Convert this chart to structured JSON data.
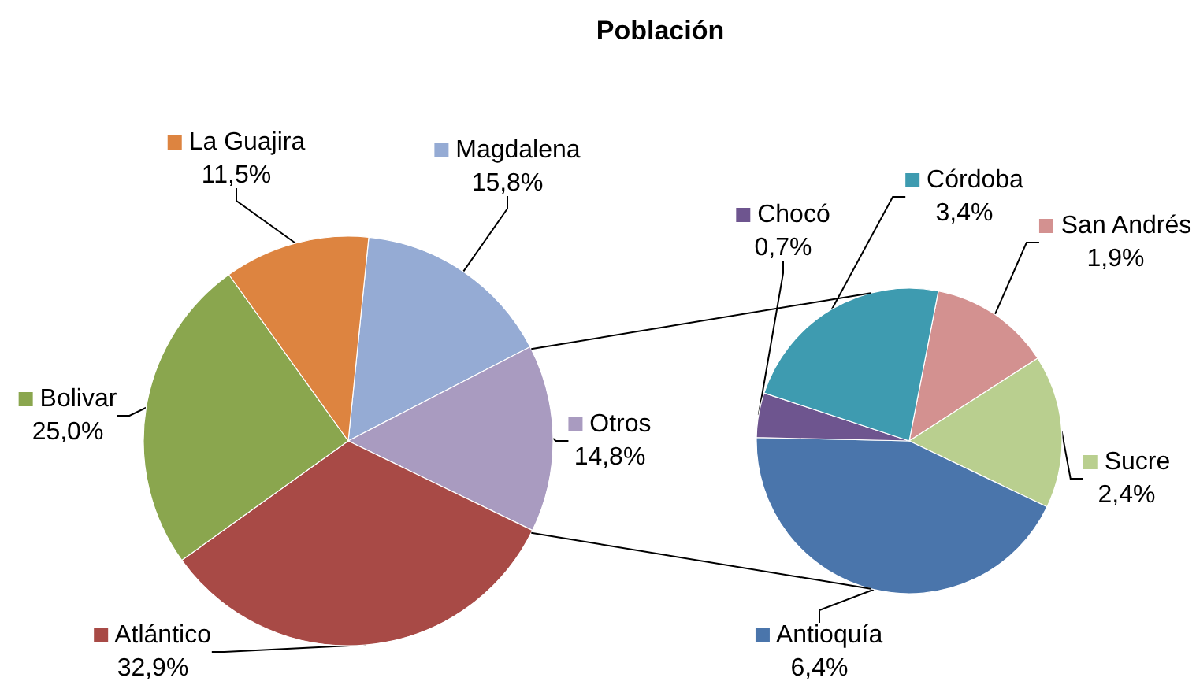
{
  "chart_data": [
    {
      "type": "pie",
      "title": "Población",
      "categories": [
        "Magdalena",
        "Otros",
        "Atlántico",
        "Bolivar",
        "La Guajira"
      ],
      "values": [
        15.8,
        14.8,
        32.9,
        25.0,
        11.5
      ],
      "colors": [
        "#95abd4",
        "#a99bc0",
        "#a84a46",
        "#8aa64e",
        "#dd8440"
      ],
      "value_labels": [
        "15,8%",
        "14,8%",
        "32,9%",
        "25,0%",
        "11,5%"
      ],
      "legend": true
    },
    {
      "type": "pie",
      "categories": [
        "San Andrés",
        "Sucre",
        "Antioquía",
        "Chocó",
        "Córdoba"
      ],
      "values": [
        1.9,
        2.4,
        6.4,
        0.7,
        3.4
      ],
      "colors": [
        "#d39190",
        "#b9cf8f",
        "#4a75ab",
        "#6e558f",
        "#3e9bb0"
      ],
      "value_labels": [
        "1,9%",
        "2,4%",
        "6,4%",
        "0,7%",
        "3,4%"
      ],
      "legend": true
    }
  ]
}
